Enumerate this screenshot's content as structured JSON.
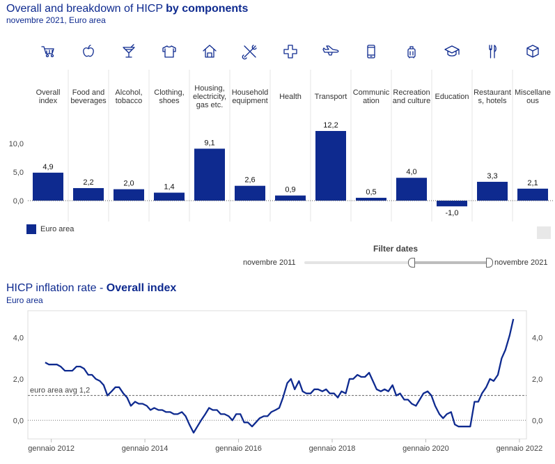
{
  "header": {
    "title_plain": "Overall and breakdown of HICP ",
    "title_bold": "by components",
    "subtitle": "novembre 2021, Euro area"
  },
  "colors": {
    "accent": "#0e2a8f",
    "text": "#333333",
    "grid": "#e6e6e6"
  },
  "chart_data": [
    {
      "type": "bar",
      "categories": [
        [
          "Overall",
          "index"
        ],
        [
          "Food and",
          "beverages"
        ],
        [
          "Alcohol,",
          "tobacco"
        ],
        [
          "Clothing,",
          "shoes"
        ],
        [
          "Housing,",
          "electricity,",
          "gas etc."
        ],
        [
          "Household",
          "equipment"
        ],
        [
          "Health"
        ],
        [
          "Transport"
        ],
        [
          "Communic",
          "ation"
        ],
        [
          "Recreation",
          "and culture"
        ],
        [
          "Education"
        ],
        [
          "Restaurant",
          "s, hotels"
        ],
        [
          "Miscellane",
          "ous"
        ]
      ],
      "icons": [
        "cart-icon",
        "apple-icon",
        "cocktail-icon",
        "shirt-icon",
        "house-icon",
        "tools-icon",
        "health-cross-icon",
        "airplane-icon",
        "phone-icon",
        "luggage-icon",
        "graduation-cap-icon",
        "cutlery-icon",
        "box-icon"
      ],
      "values": [
        4.9,
        2.2,
        2.0,
        1.4,
        9.1,
        2.6,
        0.9,
        12.2,
        0.5,
        4.0,
        -1.0,
        3.3,
        2.1
      ],
      "value_labels": [
        "4,9",
        "2,2",
        "2,0",
        "1,4",
        "9,1",
        "2,6",
        "0,9",
        "12,2",
        "0,5",
        "4,0",
        "-1,0",
        "3,3",
        "2,1"
      ],
      "yticks": [
        0,
        5,
        10
      ],
      "ytick_labels": [
        "0,0",
        "5,0",
        "10,0"
      ],
      "ylim": [
        -1.5,
        12.5
      ],
      "series": [
        {
          "name": "Euro area",
          "values": [
            4.9,
            2.2,
            2.0,
            1.4,
            9.1,
            2.6,
            0.9,
            12.2,
            0.5,
            4.0,
            -1.0,
            3.3,
            2.1
          ]
        }
      ],
      "legend": "bottom-left",
      "grid": false
    },
    {
      "type": "line",
      "title_plain": "HICP inflation rate - ",
      "title_bold": "Overall index",
      "subtitle": "Euro area",
      "x": [
        2011.87,
        2011.95,
        2012.04,
        2012.12,
        2012.2,
        2012.29,
        2012.37,
        2012.45,
        2012.54,
        2012.62,
        2012.7,
        2012.79,
        2012.87,
        2012.95,
        2013.04,
        2013.12,
        2013.2,
        2013.29,
        2013.37,
        2013.45,
        2013.54,
        2013.62,
        2013.7,
        2013.79,
        2013.87,
        2013.95,
        2014.04,
        2014.12,
        2014.2,
        2014.29,
        2014.37,
        2014.45,
        2014.54,
        2014.62,
        2014.7,
        2014.79,
        2014.87,
        2014.95,
        2015.04,
        2015.12,
        2015.2,
        2015.29,
        2015.37,
        2015.45,
        2015.54,
        2015.62,
        2015.7,
        2015.79,
        2015.87,
        2015.95,
        2016.04,
        2016.12,
        2016.2,
        2016.29,
        2016.37,
        2016.45,
        2016.54,
        2016.62,
        2016.7,
        2016.79,
        2016.87,
        2016.95,
        2017.04,
        2017.12,
        2017.2,
        2017.29,
        2017.37,
        2017.45,
        2017.54,
        2017.62,
        2017.7,
        2017.79,
        2017.87,
        2017.95,
        2018.04,
        2018.12,
        2018.2,
        2018.29,
        2018.37,
        2018.45,
        2018.54,
        2018.62,
        2018.7,
        2018.79,
        2018.87,
        2018.95,
        2019.04,
        2019.12,
        2019.2,
        2019.29,
        2019.37,
        2019.45,
        2019.54,
        2019.62,
        2019.7,
        2019.79,
        2019.87,
        2019.95,
        2020.04,
        2020.12,
        2020.2,
        2020.29,
        2020.37,
        2020.45,
        2020.54,
        2020.62,
        2020.7,
        2020.79,
        2020.87,
        2020.95,
        2021.04,
        2021.12,
        2021.2,
        2021.29,
        2021.37,
        2021.45,
        2021.54,
        2021.62,
        2021.7,
        2021.79,
        2021.87
      ],
      "y": [
        2.8,
        2.7,
        2.7,
        2.7,
        2.6,
        2.4,
        2.4,
        2.4,
        2.6,
        2.6,
        2.5,
        2.2,
        2.2,
        2.0,
        1.9,
        1.7,
        1.2,
        1.4,
        1.6,
        1.6,
        1.3,
        1.1,
        0.7,
        0.9,
        0.8,
        0.8,
        0.7,
        0.5,
        0.6,
        0.5,
        0.5,
        0.4,
        0.4,
        0.3,
        0.3,
        0.4,
        0.2,
        -0.2,
        -0.6,
        -0.3,
        0.0,
        0.3,
        0.6,
        0.5,
        0.5,
        0.3,
        0.3,
        0.2,
        0.0,
        0.3,
        0.3,
        -0.1,
        -0.1,
        -0.3,
        -0.1,
        0.1,
        0.2,
        0.2,
        0.4,
        0.5,
        0.6,
        1.1,
        1.8,
        2.0,
        1.5,
        1.9,
        1.4,
        1.3,
        1.3,
        1.5,
        1.5,
        1.4,
        1.5,
        1.3,
        1.3,
        1.1,
        1.4,
        1.3,
        2.0,
        2.0,
        2.2,
        2.1,
        2.1,
        2.3,
        1.9,
        1.5,
        1.4,
        1.5,
        1.4,
        1.7,
        1.2,
        1.3,
        1.0,
        1.0,
        0.8,
        0.7,
        1.0,
        1.3,
        1.4,
        1.2,
        0.7,
        0.3,
        0.1,
        0.3,
        0.4,
        -0.2,
        -0.3,
        -0.3,
        -0.3,
        -0.3,
        0.9,
        0.9,
        1.3,
        1.6,
        2.0,
        1.9,
        2.2,
        3.0,
        3.4,
        4.1,
        4.9
      ],
      "xtick_values": [
        2012.0,
        2014.0,
        2016.0,
        2018.0,
        2020.0,
        2022.0
      ],
      "xtick_labels": [
        "gennaio 2012",
        "gennaio 2014",
        "gennaio 2016",
        "gennaio 2018",
        "gennaio 2020",
        "gennaio 2022"
      ],
      "xlim": [
        2011.5,
        2022.15
      ],
      "yticks": [
        0,
        2,
        4
      ],
      "ytick_labels": [
        "0,0",
        "2,0",
        "4,0"
      ],
      "ylim": [
        -0.9,
        5.3
      ],
      "reference_line": {
        "value": 1.2,
        "label": "euro area avg 1,2"
      },
      "grid": false
    }
  ],
  "legend": {
    "label": "Euro area"
  },
  "filter": {
    "label": "Filter dates",
    "start": "novembre 2011",
    "end": "novembre 2021"
  }
}
